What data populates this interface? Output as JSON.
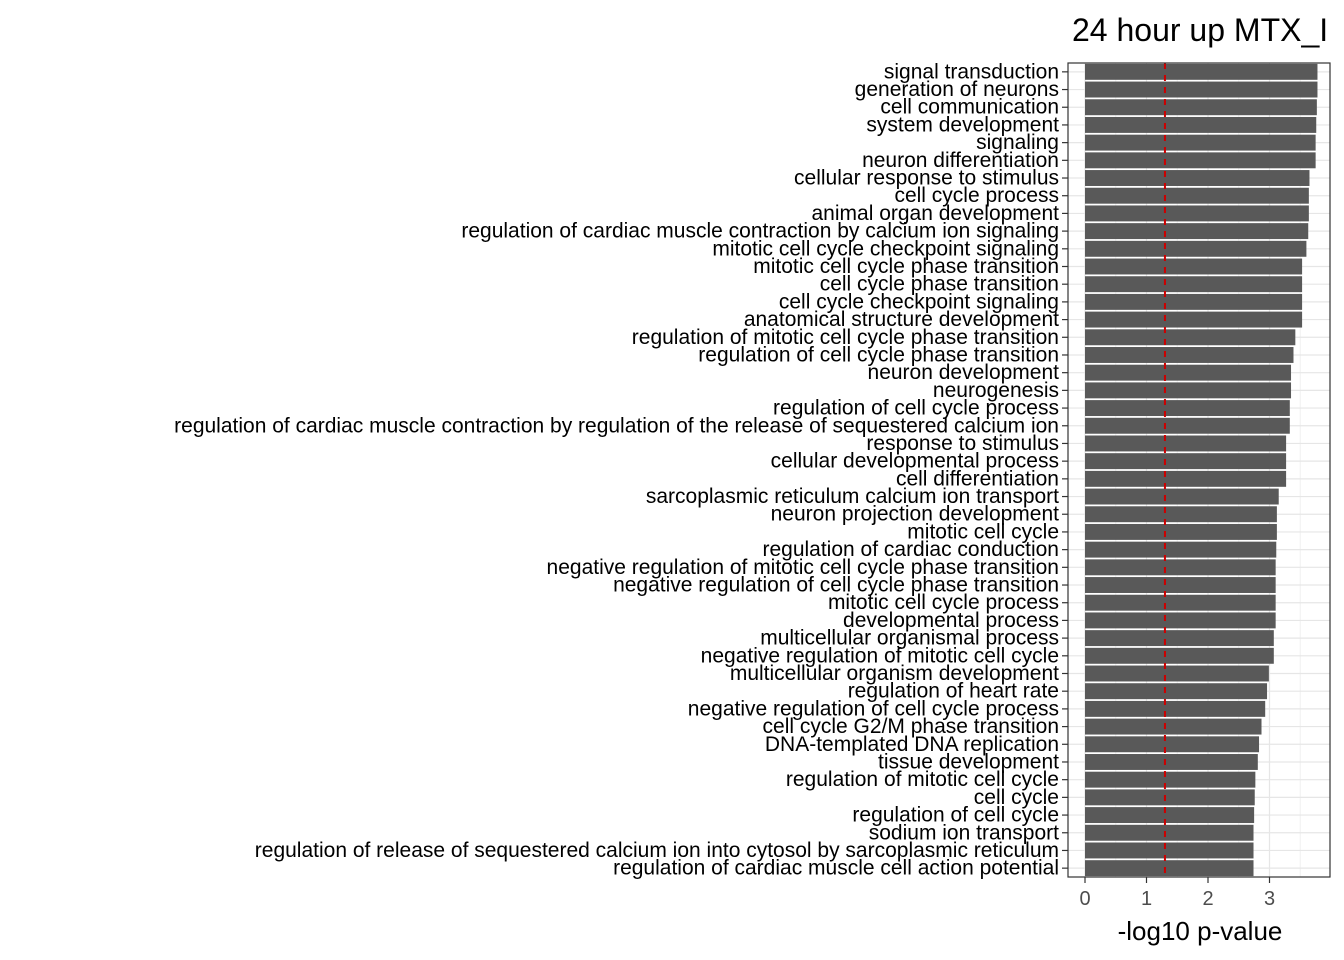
{
  "chart_data": {
    "type": "bar",
    "orientation": "horizontal",
    "title": "24 hour up MTX_I",
    "xlabel": "-log10 p-value",
    "ylabel": "",
    "xlim": [
      0,
      4.0
    ],
    "xticks": [
      0,
      1,
      2,
      3
    ],
    "reference_line": {
      "x": 1.3,
      "color": "#cc0000",
      "style": "dashed"
    },
    "grid": true,
    "bar_color": "#595959",
    "categories": [
      "signal transduction",
      "generation of neurons",
      "cell communication",
      "system development",
      "signaling",
      "neuron differentiation",
      "cellular response to stimulus",
      "cell cycle process",
      "animal organ development",
      "regulation of cardiac muscle contraction by calcium ion signaling",
      "mitotic cell cycle checkpoint signaling",
      "mitotic cell cycle phase transition",
      "cell cycle phase transition",
      "cell cycle checkpoint signaling",
      "anatomical structure development",
      "regulation of mitotic cell cycle phase transition",
      "regulation of cell cycle phase transition",
      "neuron development",
      "neurogenesis",
      "regulation of cell cycle process",
      "regulation of cardiac muscle contraction by regulation of the release of sequestered calcium ion",
      "response to stimulus",
      "cellular developmental process",
      "cell differentiation",
      "sarcoplasmic reticulum calcium ion transport",
      "neuron projection development",
      "mitotic cell cycle",
      "regulation of cardiac conduction",
      "negative regulation of mitotic cell cycle phase transition",
      "negative regulation of cell cycle phase transition",
      "mitotic cell cycle process",
      "developmental process",
      "multicellular organismal process",
      "negative regulation of mitotic cell cycle",
      "multicellular organism development",
      "regulation of heart rate",
      "negative regulation of cell cycle process",
      "cell cycle G2/M phase transition",
      "DNA-templated DNA replication",
      "tissue development",
      "regulation of mitotic cell cycle",
      "cell cycle",
      "regulation of cell cycle",
      "sodium ion transport",
      "regulation of release of sequestered calcium ion into cytosol by sarcoplasmic reticulum",
      "regulation of cardiac muscle cell action potential"
    ],
    "values": [
      3.78,
      3.78,
      3.77,
      3.76,
      3.75,
      3.75,
      3.65,
      3.64,
      3.64,
      3.63,
      3.6,
      3.53,
      3.53,
      3.53,
      3.53,
      3.42,
      3.39,
      3.35,
      3.35,
      3.33,
      3.33,
      3.27,
      3.27,
      3.27,
      3.15,
      3.12,
      3.12,
      3.11,
      3.1,
      3.1,
      3.1,
      3.1,
      3.07,
      3.07,
      2.99,
      2.96,
      2.93,
      2.87,
      2.83,
      2.81,
      2.77,
      2.76,
      2.75,
      2.74,
      2.74,
      2.74
    ]
  }
}
